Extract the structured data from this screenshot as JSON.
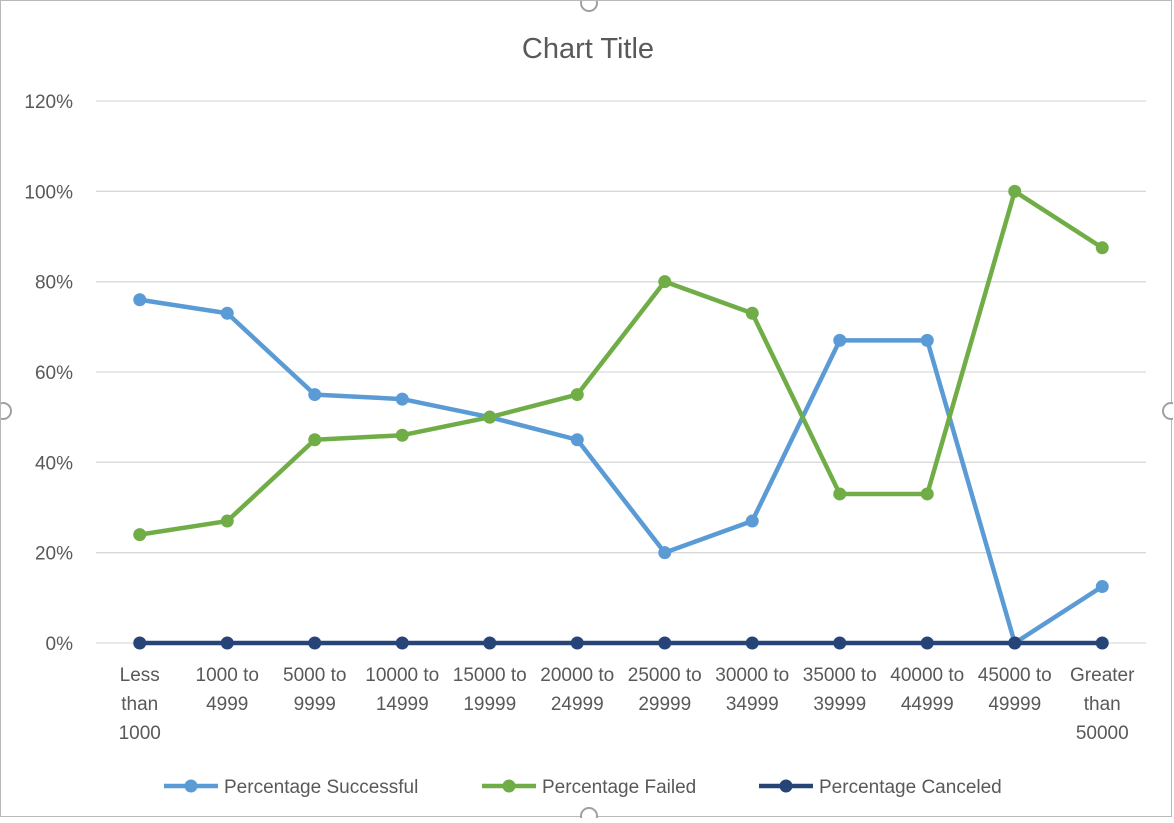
{
  "chart_data": {
    "type": "line",
    "title": "Chart Title",
    "xlabel": "",
    "ylabel": "",
    "ylim": [
      0,
      1.2
    ],
    "yticks": [
      0,
      0.2,
      0.4,
      0.6,
      0.8,
      1.0,
      1.2
    ],
    "ytick_labels": [
      "0%",
      "20%",
      "40%",
      "60%",
      "80%",
      "100%",
      "120%"
    ],
    "grid": "horizontal",
    "legend_position": "bottom",
    "categories": [
      [
        "Less",
        "than",
        "1000"
      ],
      [
        "1000 to",
        "4999"
      ],
      [
        "5000 to",
        "9999"
      ],
      [
        "10000 to",
        "14999"
      ],
      [
        "15000 to",
        "19999"
      ],
      [
        "20000 to",
        "24999"
      ],
      [
        "25000 to",
        "29999"
      ],
      [
        "30000 to",
        "34999"
      ],
      [
        "35000 to",
        "39999"
      ],
      [
        "40000 to",
        "44999"
      ],
      [
        "45000 to",
        "49999"
      ],
      [
        "Greater",
        "than",
        "50000"
      ]
    ],
    "series": [
      {
        "name": "Percentage Successful",
        "color": "#5b9bd5",
        "values": [
          0.76,
          0.73,
          0.55,
          0.54,
          0.5,
          0.45,
          0.2,
          0.27,
          0.67,
          0.67,
          0.0,
          0.125
        ]
      },
      {
        "name": "Percentage Failed",
        "color": "#70ad47",
        "values": [
          0.24,
          0.27,
          0.45,
          0.46,
          0.5,
          0.55,
          0.8,
          0.73,
          0.33,
          0.33,
          1.0,
          0.875
        ]
      },
      {
        "name": "Percentage Canceled",
        "color": "#264478",
        "values": [
          0,
          0,
          0,
          0,
          0,
          0,
          0,
          0,
          0,
          0,
          0,
          0
        ]
      }
    ]
  }
}
